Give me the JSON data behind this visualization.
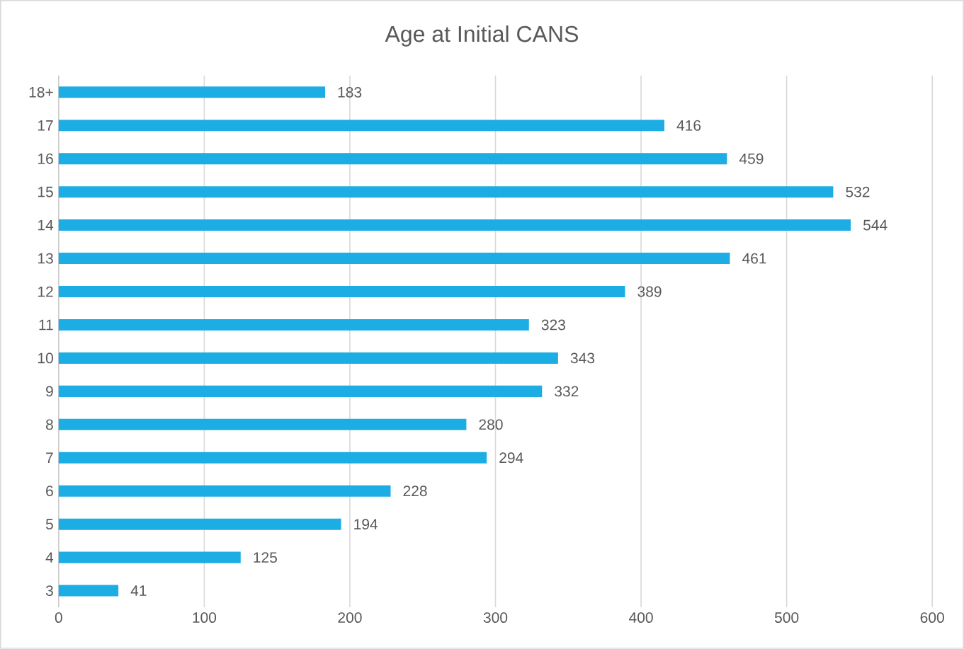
{
  "chart_data": {
    "type": "bar",
    "title": "Age at Initial CANS",
    "orientation": "horizontal",
    "categories": [
      "18+",
      "17",
      "16",
      "15",
      "14",
      "13",
      "12",
      "11",
      "10",
      "9",
      "8",
      "7",
      "6",
      "5",
      "4",
      "3"
    ],
    "values": [
      183,
      416,
      459,
      532,
      544,
      461,
      389,
      323,
      343,
      332,
      280,
      294,
      228,
      194,
      125,
      41
    ],
    "color": "#1cade4",
    "xlim": [
      0,
      600
    ],
    "xticks": [
      0,
      100,
      200,
      300,
      400,
      500,
      600
    ],
    "grid": "x",
    "data_labels": true
  }
}
